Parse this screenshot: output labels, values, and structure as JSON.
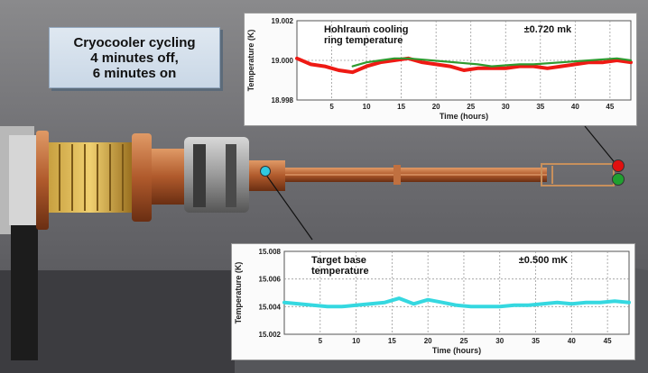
{
  "callout": {
    "line1": "Cryocooler cycling",
    "line2": "4 minutes off,",
    "line3": "6 minutes on"
  },
  "colors": {
    "hohlraum_series": "#ee1a14",
    "hohlraum_minor_series": "#2f9a2f",
    "target_series": "#35d8e0",
    "marker_red": "#e01010",
    "marker_green": "#20a030",
    "marker_cyan": "#30c8e0"
  },
  "chart_data": [
    {
      "type": "line",
      "title_line1": "Hohlraum cooling",
      "title_line2": "ring temperature",
      "annotation": "±0.720 mk",
      "xlabel": "Time (hours)",
      "ylabel": "Temperature (K)",
      "xlim": [
        0,
        48
      ],
      "ylim": [
        18.998,
        19.002
      ],
      "xticks": [
        5,
        10,
        15,
        20,
        25,
        30,
        35,
        40,
        45
      ],
      "yticks": [
        18.998,
        19.0,
        19.002
      ],
      "ytick_labels": [
        "18.998",
        "19.000",
        "19.002"
      ],
      "grid": true,
      "series": [
        {
          "color_key": "hohlraum_series",
          "x": [
            0,
            2,
            4,
            6,
            8,
            10,
            12,
            14,
            16,
            18,
            20,
            22,
            24,
            26,
            28,
            30,
            32,
            34,
            36,
            38,
            40,
            42,
            44,
            46,
            48
          ],
          "y": [
            19.0001,
            18.9998,
            18.9997,
            18.9995,
            18.9994,
            18.9997,
            18.9999,
            19.0,
            19.0001,
            18.9999,
            18.9998,
            18.9997,
            18.9995,
            18.9996,
            18.9996,
            18.9996,
            18.9997,
            18.9997,
            18.9996,
            18.9997,
            18.9998,
            18.9999,
            18.9999,
            19.0,
            18.9999
          ]
        },
        {
          "color_key": "hohlraum_minor_series",
          "x": [
            8,
            10,
            12,
            14,
            16,
            26,
            28,
            32,
            34,
            46,
            48
          ],
          "y": [
            18.9997,
            18.9999,
            19.0,
            19.0001,
            19.0001,
            18.9998,
            18.9997,
            18.9998,
            18.9998,
            19.0001,
            19.0
          ]
        }
      ]
    },
    {
      "type": "line",
      "title_line1": "Target base",
      "title_line2": "temperature",
      "annotation": "±0.500 mK",
      "xlabel": "Time (hours)",
      "ylabel": "Temperature (K)",
      "xlim": [
        0,
        48
      ],
      "ylim": [
        15.002,
        15.008
      ],
      "xticks": [
        5,
        10,
        15,
        20,
        25,
        30,
        35,
        40,
        45
      ],
      "yticks": [
        15.002,
        15.004,
        15.006,
        15.008
      ],
      "ytick_labels": [
        "15.002",
        "15.004",
        "15.006",
        "15.008"
      ],
      "grid": true,
      "series": [
        {
          "color_key": "target_series",
          "x": [
            0,
            2,
            4,
            6,
            8,
            10,
            12,
            14,
            16,
            18,
            20,
            22,
            24,
            26,
            28,
            30,
            32,
            34,
            36,
            38,
            40,
            42,
            44,
            46,
            48
          ],
          "y": [
            15.0043,
            15.0042,
            15.0041,
            15.004,
            15.004,
            15.0041,
            15.0042,
            15.0043,
            15.0046,
            15.0042,
            15.0045,
            15.0043,
            15.0041,
            15.004,
            15.004,
            15.004,
            15.0041,
            15.0041,
            15.0042,
            15.0043,
            15.0042,
            15.0043,
            15.0043,
            15.0044,
            15.0043
          ]
        }
      ]
    }
  ]
}
